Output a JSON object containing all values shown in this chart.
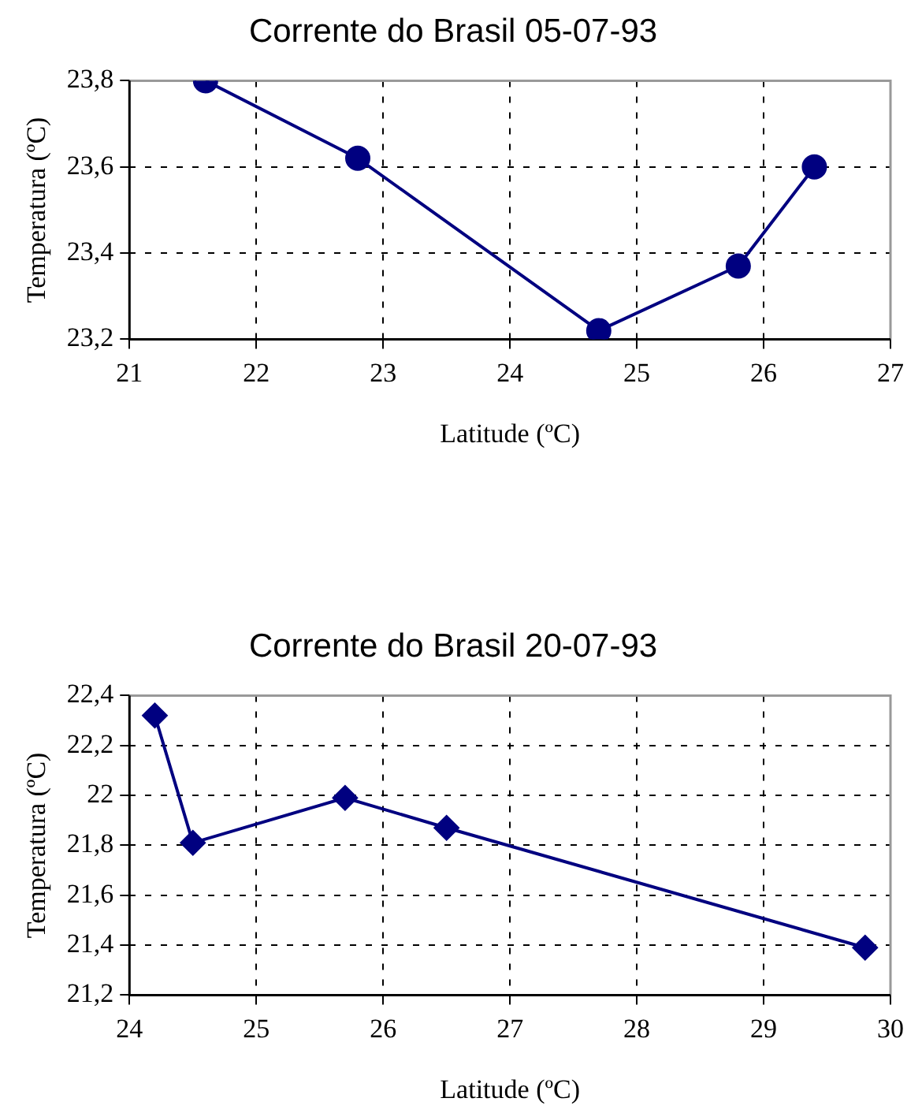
{
  "chart_data": [
    {
      "type": "line",
      "title": "Corrente do Brasil 05-07-93",
      "xlabel": "Latitude (ºC)",
      "ylabel": "Temperatura (ºC)",
      "x": [
        21.6,
        22.8,
        24.7,
        25.8,
        26.4
      ],
      "series": [
        {
          "color": "#000080",
          "values": [
            23.8,
            23.62,
            23.22,
            23.37,
            23.6
          ]
        }
      ],
      "xlim": [
        21,
        27
      ],
      "xticks": [
        21,
        22,
        23,
        24,
        25,
        26,
        27
      ],
      "ylim": [
        23.2,
        23.8
      ],
      "yticks": [
        {
          "value": 23.2,
          "label": "23,2"
        },
        {
          "value": 23.4,
          "label": "23,4"
        },
        {
          "value": 23.6,
          "label": "23,6"
        },
        {
          "value": 23.8,
          "label": "23,8"
        }
      ],
      "grid": true,
      "marker": "circle"
    },
    {
      "type": "line",
      "title": "Corrente do Brasil 20-07-93",
      "xlabel": "Latitude (ºC)",
      "ylabel": "Temperatura (ºC)",
      "x": [
        24.2,
        24.5,
        25.7,
        26.5,
        29.8
      ],
      "series": [
        {
          "color": "#000080",
          "values": [
            22.32,
            21.81,
            21.99,
            21.87,
            21.39
          ]
        }
      ],
      "xlim": [
        24,
        30
      ],
      "xticks": [
        24,
        25,
        26,
        27,
        28,
        29,
        30
      ],
      "ylim": [
        21.2,
        22.4
      ],
      "yticks": [
        {
          "value": 21.2,
          "label": "21,2"
        },
        {
          "value": 21.4,
          "label": "21,4"
        },
        {
          "value": 21.6,
          "label": "21,6"
        },
        {
          "value": 21.8,
          "label": "21,8"
        },
        {
          "value": 22,
          "label": "22"
        },
        {
          "value": 22.2,
          "label": "22,2"
        },
        {
          "value": 22.4,
          "label": "22,4"
        }
      ],
      "grid": true,
      "marker": "diamond"
    }
  ]
}
